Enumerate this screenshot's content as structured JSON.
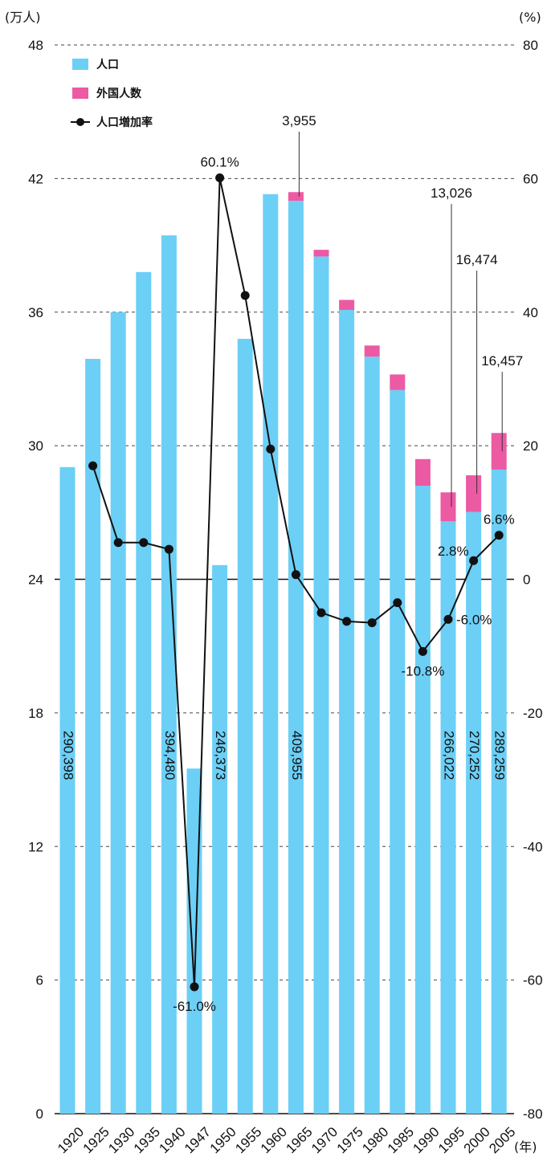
{
  "chart_data": {
    "type": "bar",
    "left_axis_unit": "(万人)",
    "right_axis_unit": "(%)",
    "x_axis_unit": "(年)",
    "categories": [
      "1920",
      "1925",
      "1930",
      "1935",
      "1940",
      "1947",
      "1950",
      "1955",
      "1960",
      "1965",
      "1970",
      "1975",
      "1980",
      "1985",
      "1990",
      "1995",
      "2000",
      "2005"
    ],
    "left_ylim": [
      0,
      48
    ],
    "left_ticks": [
      "0",
      "6",
      "12",
      "18",
      "24",
      "30",
      "36",
      "42",
      "48"
    ],
    "right_ylim": [
      -80,
      80
    ],
    "right_ticks": [
      "-80",
      "-60",
      "-40",
      "-20",
      "0",
      "20",
      "40",
      "60",
      "80"
    ],
    "grid": "dashed horizontal",
    "legend_position": "top-left",
    "legend": [
      {
        "label": "人口",
        "color": "#6ccff6",
        "kind": "bar"
      },
      {
        "label": "外国人数",
        "color": "#ec5aa3",
        "kind": "bar"
      },
      {
        "label": "人口増加率",
        "color": "#111111",
        "kind": "line"
      }
    ],
    "series": [
      {
        "name": "人口",
        "axis": "left",
        "color": "#6ccff6",
        "values": [
          29.0398,
          33.9,
          36.0,
          37.8,
          39.448,
          15.5,
          24.6373,
          34.8,
          41.3,
          40.9955,
          38.5,
          36.1,
          34.0,
          32.5,
          28.2,
          26.6022,
          27.0252,
          28.9259
        ]
      },
      {
        "name": "外国人数",
        "axis": "left",
        "color": "#ec5aa3",
        "values": [
          0,
          0,
          0,
          0,
          0,
          0,
          0,
          0,
          0,
          0.3955,
          0.3,
          0.45,
          0.5,
          0.7,
          1.2,
          1.3026,
          1.6474,
          1.6457
        ]
      },
      {
        "name": "人口増加率",
        "axis": "right",
        "color": "#111111",
        "values": [
          null,
          17.0,
          5.5,
          5.5,
          4.5,
          -61.0,
          60.1,
          42.5,
          19.5,
          0.7,
          -5.0,
          -6.3,
          -6.5,
          -3.5,
          -10.8,
          -6.0,
          2.8,
          6.6
        ]
      }
    ],
    "bar_value_labels": [
      {
        "category": "1920",
        "text": "290,398"
      },
      {
        "category": "1940",
        "text": "394,480"
      },
      {
        "category": "1950",
        "text": "246,373"
      },
      {
        "category": "1965",
        "text": "409,955"
      },
      {
        "category": "1995",
        "text": "266,022"
      },
      {
        "category": "2000",
        "text": "270,252"
      },
      {
        "category": "2005",
        "text": "289,259"
      }
    ],
    "foreign_callouts": [
      {
        "category": "1965",
        "text": "3,955"
      },
      {
        "category": "1995",
        "text": "13,026"
      },
      {
        "category": "2000",
        "text": "16,474"
      },
      {
        "category": "2005",
        "text": "16,457"
      }
    ],
    "rate_labels": [
      {
        "category": "1947",
        "text": "-61.0%",
        "pos": "below"
      },
      {
        "category": "1950",
        "text": "60.1%",
        "pos": "above"
      },
      {
        "category": "1990",
        "text": "-10.8%",
        "pos": "below"
      },
      {
        "category": "1995",
        "text": "-6.0%",
        "pos": "right"
      },
      {
        "category": "2000",
        "text": "2.8%",
        "pos": "left"
      },
      {
        "category": "2005",
        "text": "6.6%",
        "pos": "above"
      }
    ]
  }
}
